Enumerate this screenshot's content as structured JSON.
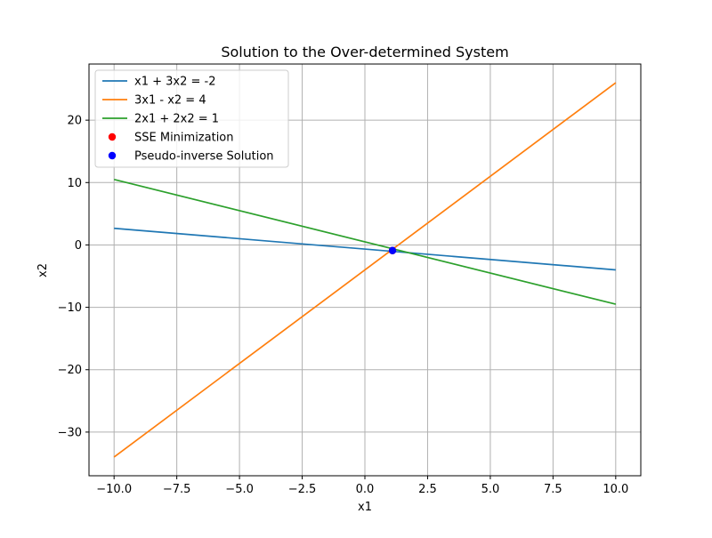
{
  "chart_data": {
    "type": "line",
    "title": "Solution to the Over-determined System",
    "xlabel": "x1",
    "ylabel": "x2",
    "xlim": [
      -11,
      11
    ],
    "ylim": [
      -37,
      29
    ],
    "grid": true,
    "legend_position": "top-left",
    "xticks": [
      -10,
      -7.5,
      -5,
      -2.5,
      0,
      2.5,
      5,
      7.5,
      10
    ],
    "xtick_labels": [
      "−10.0",
      "−7.5",
      "−5.0",
      "−2.5",
      "0.0",
      "2.5",
      "5.0",
      "7.5",
      "10.0"
    ],
    "yticks": [
      -30,
      -20,
      -10,
      0,
      10,
      20
    ],
    "ytick_labels": [
      "−30",
      "−20",
      "−10",
      "0",
      "10",
      "20"
    ],
    "series": [
      {
        "name": "x1 + 3x2 = -2",
        "kind": "line",
        "color": "#1f77b4",
        "x": [
          -10,
          10
        ],
        "y": [
          2.667,
          -4.0
        ]
      },
      {
        "name": "3x1 - x2 = 4",
        "kind": "line",
        "color": "#ff7f0e",
        "x": [
          -10,
          10
        ],
        "y": [
          -34,
          26
        ]
      },
      {
        "name": "2x1 + 2x2 = 1",
        "kind": "line",
        "color": "#2ca02c",
        "x": [
          -10,
          10
        ],
        "y": [
          10.5,
          -9.5
        ]
      },
      {
        "name": "SSE Minimization",
        "kind": "point",
        "color": "#ff0000",
        "x": [
          1.1
        ],
        "y": [
          -0.9
        ]
      },
      {
        "name": "Pseudo-inverse Solution",
        "kind": "point",
        "color": "#0000ff",
        "x": [
          1.1
        ],
        "y": [
          -0.9
        ]
      }
    ]
  }
}
